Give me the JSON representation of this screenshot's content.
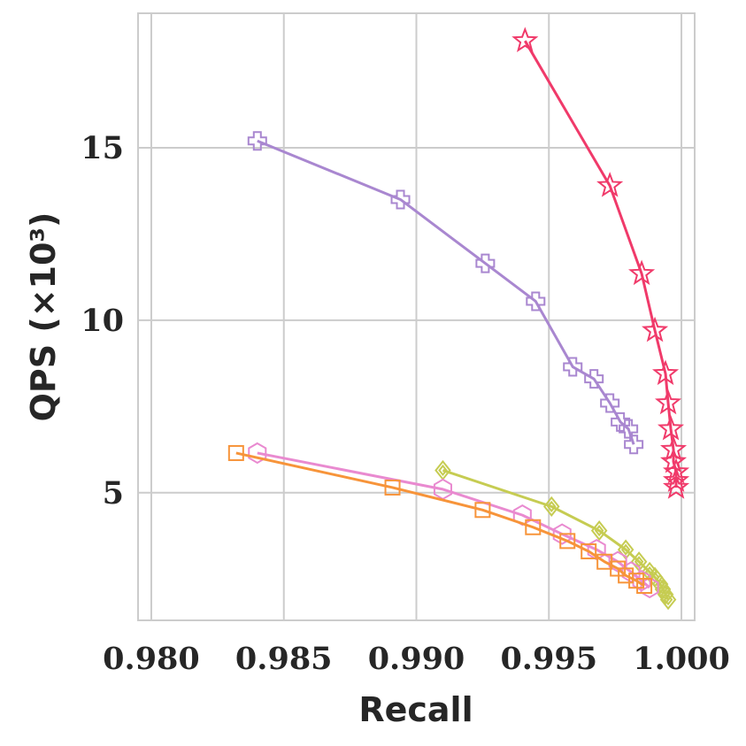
{
  "chart_data": {
    "type": "line",
    "xlabel": "Recall",
    "ylabel": "QPS (×10³)",
    "xlim": [
      0.9795,
      1.0005
    ],
    "ylim": [
      1.3,
      18.9
    ],
    "xticks": [
      0.98,
      0.985,
      0.99,
      0.995,
      1.0
    ],
    "xtick_labels": [
      "0.980",
      "0.985",
      "0.990",
      "0.995",
      "1.000"
    ],
    "yticks": [
      5,
      10,
      15
    ],
    "ytick_labels": [
      "5",
      "10",
      "15"
    ],
    "grid": true,
    "legend": false,
    "series": [
      {
        "color": "#f03a6a",
        "marker": "star",
        "x": [
          0.9941,
          0.9973,
          0.9985,
          0.999,
          0.9994,
          0.9995,
          0.9996,
          0.9997,
          0.9997,
          0.9998,
          0.9998,
          0.9998
        ],
        "y": [
          18.1,
          13.9,
          11.35,
          9.7,
          8.45,
          7.6,
          6.85,
          6.25,
          5.9,
          5.6,
          5.35,
          5.15
        ]
      },
      {
        "color": "#a987d0",
        "marker": "plus",
        "x": [
          0.984,
          0.9894,
          0.9926,
          0.9945,
          0.9959,
          0.9967,
          0.9973,
          0.9977,
          0.998,
          0.9982
        ],
        "y": [
          15.2,
          13.5,
          11.65,
          10.55,
          8.65,
          8.3,
          7.6,
          7.05,
          6.85,
          6.4
        ]
      },
      {
        "color": "#c6cc52",
        "marker": "thin-diamond",
        "x": [
          0.991,
          0.9951,
          0.9969,
          0.9979,
          0.9984,
          0.9988,
          0.999,
          0.9992,
          0.9993,
          0.9994,
          0.9995
        ],
        "y": [
          5.65,
          4.6,
          3.9,
          3.35,
          3.0,
          2.7,
          2.55,
          2.35,
          2.2,
          2.05,
          1.9
        ]
      },
      {
        "color": "#e98ad0",
        "marker": "hexagon",
        "x": [
          0.984,
          0.991,
          0.994,
          0.9955,
          0.9968,
          0.9976,
          0.9981,
          0.9985,
          0.9988
        ],
        "y": [
          6.15,
          5.1,
          4.35,
          3.8,
          3.35,
          3.0,
          2.7,
          2.45,
          2.25
        ]
      },
      {
        "color": "#f7943a",
        "marker": "square",
        "x": [
          0.9832,
          0.9891,
          0.9925,
          0.9944,
          0.9957,
          0.9965,
          0.9971,
          0.9976,
          0.9979,
          0.9983,
          0.9986
        ],
        "y": [
          6.15,
          5.15,
          4.5,
          4.0,
          3.6,
          3.3,
          3.0,
          2.8,
          2.6,
          2.45,
          2.3
        ]
      }
    ]
  }
}
